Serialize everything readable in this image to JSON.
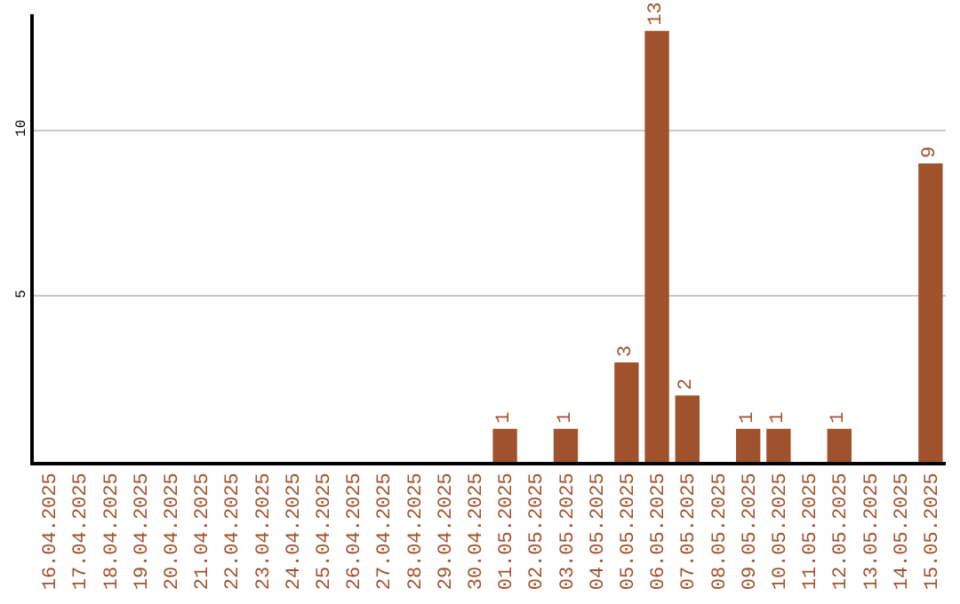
{
  "chart_data": {
    "type": "bar",
    "categories": [
      "16.04.2025",
      "17.04.2025",
      "18.04.2025",
      "19.04.2025",
      "20.04.2025",
      "21.04.2025",
      "22.04.2025",
      "23.04.2025",
      "24.04.2025",
      "25.04.2025",
      "26.04.2025",
      "27.04.2025",
      "28.04.2025",
      "29.04.2025",
      "30.04.2025",
      "01.05.2025",
      "02.05.2025",
      "03.05.2025",
      "04.05.2025",
      "05.05.2025",
      "06.05.2025",
      "07.05.2025",
      "08.05.2025",
      "09.05.2025",
      "10.05.2025",
      "11.05.2025",
      "12.05.2025",
      "13.05.2025",
      "14.05.2025",
      "15.05.2025"
    ],
    "values": [
      0,
      0,
      0,
      0,
      0,
      0,
      0,
      0,
      0,
      0,
      0,
      0,
      0,
      0,
      0,
      1,
      0,
      1,
      0,
      3,
      13,
      2,
      0,
      1,
      1,
      0,
      1,
      0,
      0,
      9
    ],
    "value_labels": [
      null,
      null,
      null,
      null,
      null,
      null,
      null,
      null,
      null,
      null,
      null,
      null,
      null,
      null,
      null,
      "1",
      null,
      "1",
      null,
      "3",
      "13",
      "2",
      null,
      "1",
      "1",
      null,
      "1",
      null,
      null,
      "9"
    ],
    "color": "#a0522d",
    "ylim": [
      0,
      13.5
    ],
    "yticks": [
      5,
      10
    ],
    "grid": "y"
  }
}
